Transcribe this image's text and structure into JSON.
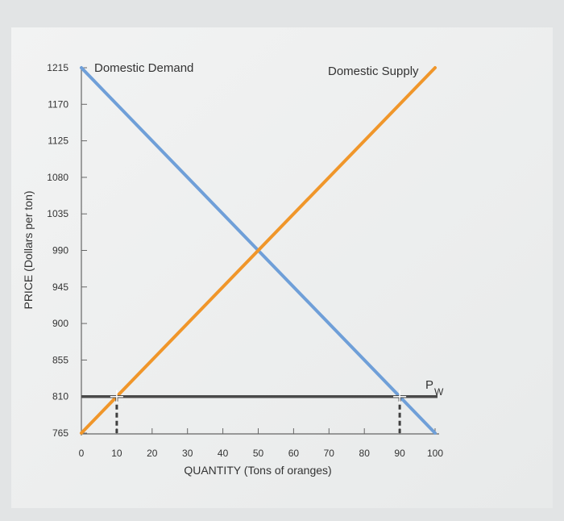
{
  "chart_data": {
    "type": "line",
    "title": "",
    "xlabel": "QUANTITY (Tons of oranges)",
    "ylabel": "PRICE (Dollars per ton)",
    "xlim": [
      0,
      100
    ],
    "ylim": [
      765,
      1215
    ],
    "x_ticks": [
      0,
      10,
      20,
      30,
      40,
      50,
      60,
      70,
      80,
      90,
      100
    ],
    "y_ticks": [
      765,
      810,
      855,
      900,
      945,
      990,
      1035,
      1080,
      1125,
      1170,
      1215
    ],
    "grid": false,
    "series": [
      {
        "name": "Domestic Demand",
        "color": "#6f9fd8",
        "x": [
          0,
          100
        ],
        "y": [
          1215,
          765
        ]
      },
      {
        "name": "Domestic Supply",
        "color": "#f0962a",
        "x": [
          0,
          100
        ],
        "y": [
          765,
          1215
        ]
      }
    ],
    "world_price": {
      "label_main": "P",
      "label_sub": "W",
      "value": 810,
      "color": "#4a4a4a"
    },
    "markers": [
      {
        "x": 10,
        "y": 810
      },
      {
        "x": 90,
        "y": 810
      }
    ]
  }
}
